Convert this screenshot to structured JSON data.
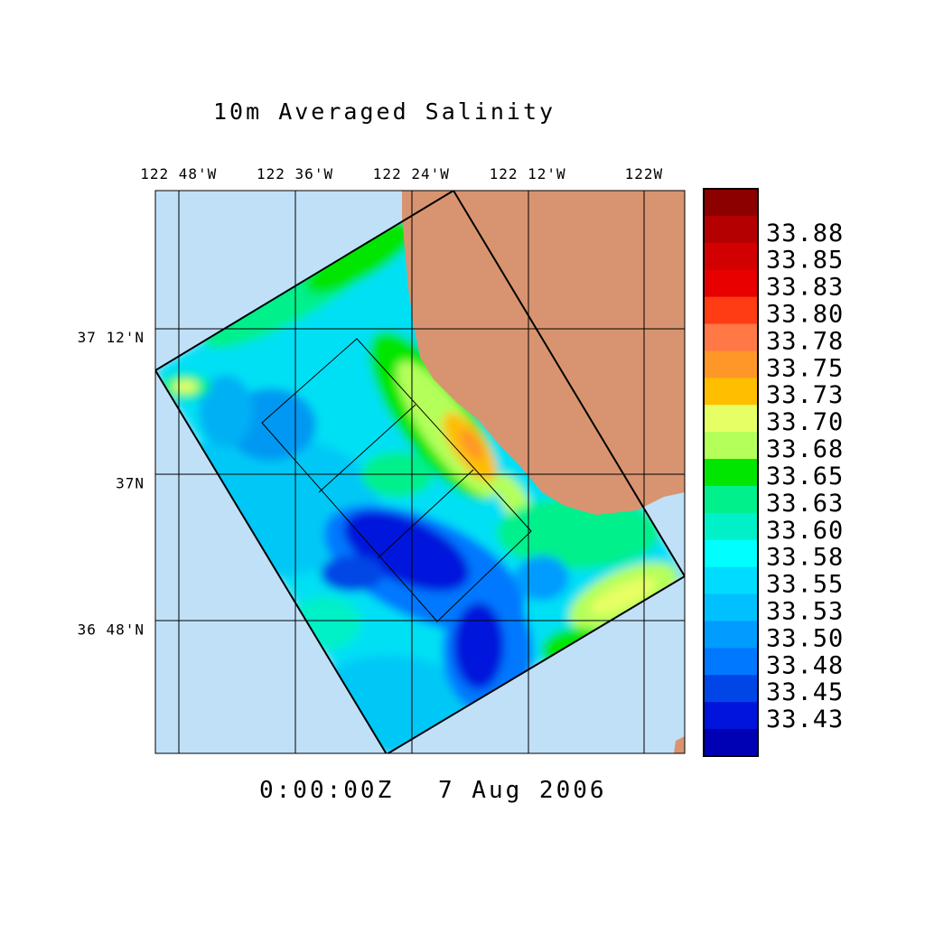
{
  "title": "10m Averaged Salinity",
  "timestamp": {
    "time": "0:00:00Z",
    "date": "7 Aug 2006"
  },
  "axes": {
    "lon_ticks": [
      {
        "value": -122.8,
        "label": "122 48'W"
      },
      {
        "value": -122.6,
        "label": "122 36'W"
      },
      {
        "value": -122.4,
        "label": "122 24'W"
      },
      {
        "value": -122.2,
        "label": "122 12'W"
      },
      {
        "value": -122.0,
        "label": "122W"
      }
    ],
    "lat_ticks": [
      {
        "value": 37.2,
        "label": "37 12'N"
      },
      {
        "value": 37.0,
        "label": "37N"
      },
      {
        "value": 36.8,
        "label": "36 48'N"
      }
    ],
    "lon_range": [
      -122.84,
      -121.93
    ],
    "lat_range": [
      36.63,
      37.4
    ]
  },
  "colors": {
    "ocean": "#c0e0f8",
    "land": "#d89470",
    "grid": "#000000"
  },
  "colorbar": {
    "levels": [
      {
        "label": "",
        "color": "#8c0000"
      },
      {
        "label": "33.88",
        "color": "#b40000"
      },
      {
        "label": "33.85",
        "color": "#d20000"
      },
      {
        "label": "33.83",
        "color": "#e80000"
      },
      {
        "label": "33.80",
        "color": "#ff3c14"
      },
      {
        "label": "33.78",
        "color": "#ff7846"
      },
      {
        "label": "33.75",
        "color": "#ff9628"
      },
      {
        "label": "33.73",
        "color": "#ffbe00"
      },
      {
        "label": "33.70",
        "color": "#e6ff64"
      },
      {
        "label": "33.68",
        "color": "#b4ff5a"
      },
      {
        "label": "33.65",
        "color": "#00e600"
      },
      {
        "label": "33.63",
        "color": "#00f08c"
      },
      {
        "label": "33.60",
        "color": "#00f0c8"
      },
      {
        "label": "33.58",
        "color": "#00ffff"
      },
      {
        "label": "33.55",
        "color": "#00dcff"
      },
      {
        "label": "33.53",
        "color": "#00c0ff"
      },
      {
        "label": "33.50",
        "color": "#009cff"
      },
      {
        "label": "33.48",
        "color": "#0078ff"
      },
      {
        "label": "33.45",
        "color": "#0046e6"
      },
      {
        "label": "33.43",
        "color": "#0014dc"
      },
      {
        "label": "",
        "color": "#0000b4"
      }
    ]
  }
}
